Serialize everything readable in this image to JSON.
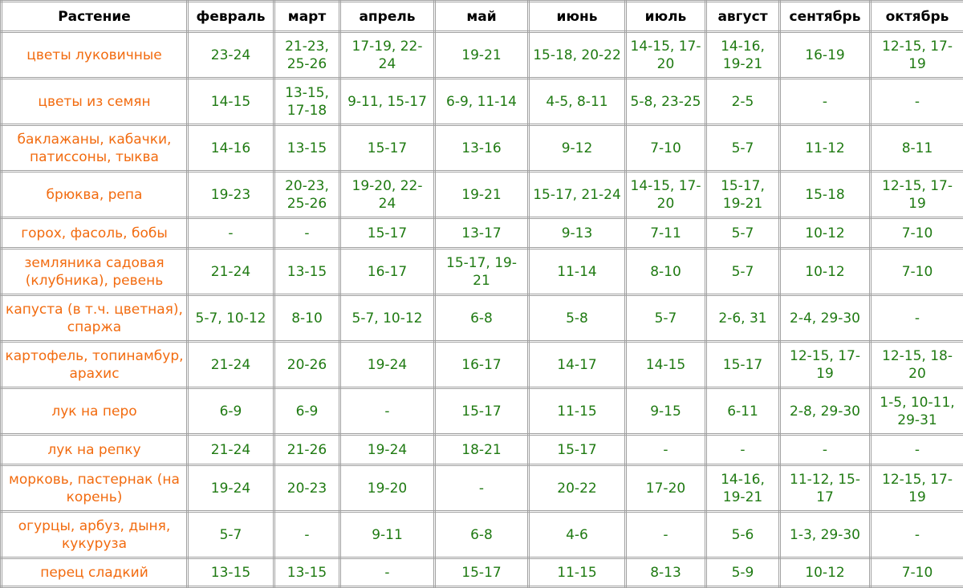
{
  "table": {
    "header": [
      "Растение",
      "февраль",
      "март",
      "апрель",
      "май",
      "июнь",
      "июль",
      "август",
      "сентябрь",
      "октябрь"
    ],
    "rows": [
      [
        "цветы луковичные",
        "23-24",
        "21-23, 25-26",
        "17-19, 22-24",
        "19-21",
        "15-18, 20-22",
        "14-15, 17-20",
        "14-16, 19-21",
        "16-19",
        "12-15, 17-19"
      ],
      [
        "цветы из семян",
        "14-15",
        "13-15, 17-18",
        "9-11, 15-17",
        "6-9, 11-14",
        "4-5, 8-11",
        "5-8, 23-25",
        "2-5",
        "-",
        "-"
      ],
      [
        "баклажаны, кабачки, патиссоны, тыква",
        "14-16",
        "13-15",
        "15-17",
        "13-16",
        "9-12",
        "7-10",
        "5-7",
        "11-12",
        "8-11"
      ],
      [
        "брюква, репа",
        "19-23",
        "20-23, 25-26",
        "19-20, 22-24",
        "19-21",
        "15-17, 21-24",
        "14-15, 17-20",
        "15-17, 19-21",
        "15-18",
        "12-15, 17-19"
      ],
      [
        "горох, фасоль, бобы",
        "-",
        "-",
        "15-17",
        "13-17",
        "9-13",
        "7-11",
        "5-7",
        "10-12",
        "7-10"
      ],
      [
        "земляника садовая (клубника), ревень",
        "21-24",
        "13-15",
        "16-17",
        "15-17, 19-21",
        "11-14",
        "8-10",
        "5-7",
        "10-12",
        "7-10"
      ],
      [
        "капуста (в т.ч. цветная), спаржа",
        "5-7, 10-12",
        "8-10",
        "5-7, 10-12",
        "6-8",
        "5-8",
        "5-7",
        "2-6, 31",
        "2-4, 29-30",
        "-"
      ],
      [
        "картофель, топинамбур, арахис",
        "21-24",
        "20-26",
        "19-24",
        "16-17",
        "14-17",
        "14-15",
        "15-17",
        "12-15, 17-19",
        "12-15, 18-20"
      ],
      [
        "лук на перо",
        "6-9",
        "6-9",
        "-",
        "15-17",
        "11-15",
        "9-15",
        "6-11",
        "2-8, 29-30",
        "1-5, 10-11, 29-31"
      ],
      [
        "лук на репку",
        "21-24",
        "21-26",
        "19-24",
        "18-21",
        "15-17",
        "-",
        "-",
        "-",
        "-"
      ],
      [
        "морковь, пастернак (на корень)",
        "19-24",
        "20-23",
        "19-20",
        "-",
        "20-22",
        "17-20",
        "14-16, 19-21",
        "11-12, 15-17",
        "12-15, 17-19"
      ],
      [
        "огурцы, арбуз, дыня, кукуруза",
        "5-7",
        "-",
        "9-11",
        "6-8",
        "4-6",
        "-",
        "5-6",
        "1-3, 29-30",
        "-"
      ],
      [
        "перец сладкий",
        "13-15",
        "13-15",
        "-",
        "15-17",
        "11-15",
        "8-13",
        "5-9",
        "10-12",
        "7-10"
      ]
    ]
  }
}
